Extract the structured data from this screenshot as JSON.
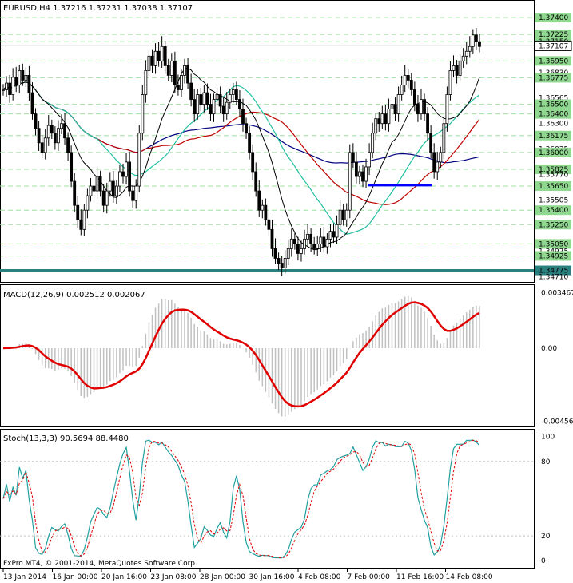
{
  "symbol_header": "EURUSD,H4  1.37216 1.37231 1.37038 1.37107",
  "price_pane": {
    "y_range": [
      1.3468,
      1.3755
    ],
    "labels": [
      {
        "text": "1.37400",
        "v": 1.374,
        "kind": "box"
      },
      {
        "text": "1.37225",
        "v": 1.37225,
        "kind": "box"
      },
      {
        "text": "1.37150",
        "v": 1.3715,
        "kind": "box"
      },
      {
        "text": "1.37107",
        "v": 1.37107,
        "kind": "current"
      },
      {
        "text": "1.36950",
        "v": 1.3695,
        "kind": "box"
      },
      {
        "text": "1.36830",
        "v": 1.3683,
        "kind": "plain"
      },
      {
        "text": "1.36775",
        "v": 1.36775,
        "kind": "box"
      },
      {
        "text": "1.36565",
        "v": 1.36565,
        "kind": "plain"
      },
      {
        "text": "1.36500",
        "v": 1.365,
        "kind": "box"
      },
      {
        "text": "1.36400",
        "v": 1.364,
        "kind": "box"
      },
      {
        "text": "1.36300",
        "v": 1.363,
        "kind": "plain"
      },
      {
        "text": "1.36175",
        "v": 1.36175,
        "kind": "box"
      },
      {
        "text": "1.36035",
        "v": 1.36035,
        "kind": "plain"
      },
      {
        "text": "1.36000",
        "v": 1.36,
        "kind": "box"
      },
      {
        "text": "1.35825",
        "v": 1.35825,
        "kind": "box"
      },
      {
        "text": "1.35770",
        "v": 1.3577,
        "kind": "plain"
      },
      {
        "text": "1.35650",
        "v": 1.3565,
        "kind": "box"
      },
      {
        "text": "1.35505",
        "v": 1.35505,
        "kind": "plain"
      },
      {
        "text": "1.35400",
        "v": 1.354,
        "kind": "box"
      },
      {
        "text": "1.35250",
        "v": 1.3525,
        "kind": "box"
      },
      {
        "text": "1.35050",
        "v": 1.3505,
        "kind": "box"
      },
      {
        "text": "1.34975",
        "v": 1.34975,
        "kind": "plain"
      },
      {
        "text": "1.34925",
        "v": 1.34925,
        "kind": "box"
      },
      {
        "text": "1.34775",
        "v": 1.34775,
        "kind": "teal"
      },
      {
        "text": "1.34710",
        "v": 1.3471,
        "kind": "plain"
      }
    ],
    "support_level": 1.34775,
    "support_color": "#2a7f7f",
    "blue_segment": {
      "from_index": 147,
      "to_index": 175,
      "v": 1.3566
    }
  },
  "macd_pane": {
    "title": "MACD(12,26,9) 0.002512 0.002067",
    "y_range": [
      -0.0048,
      0.0037
    ],
    "labels": [
      {
        "text": "0.003467",
        "v": 0.003467
      },
      {
        "text": "0.00",
        "v": 0
      },
      {
        "text": "-0.004568",
        "v": -0.004568
      }
    ]
  },
  "stoch_pane": {
    "title": "Stoch(13,3,3) 90.5694 88.4480",
    "y_range": [
      -5,
      103
    ],
    "labels": [
      {
        "text": "100",
        "v": 100
      },
      {
        "text": "80",
        "v": 80
      },
      {
        "text": "20",
        "v": 20
      },
      {
        "text": "0",
        "v": 0
      }
    ]
  },
  "copyright": "FxPro MT4, © 2001-2014, MetaQuotes Software Corp.",
  "time_axis": [
    "13 Jan 2014",
    "16 Jan 00:00",
    "20 Jan 16:00",
    "23 Jan 08:00",
    "28 Jan 00:00",
    "30 Jan 16:00",
    "4 Feb 08:00",
    "7 Feb 00:00",
    "11 Feb 16:00",
    "14 Feb 08:00"
  ],
  "colors": {
    "candle": "#000000",
    "ma_fast": "#000000",
    "ma_mid_red": "#c00000",
    "ma_slow_blue": "#000080",
    "ma_teal": "#20c0a0",
    "grid_dash": "#a0e0a0",
    "macd_hist": "#c0c0c0",
    "macd_signal": "#e00000",
    "stoch_main": "#20a0a0",
    "stoch_signal": "#e00000"
  },
  "chart_data": {
    "type": "line",
    "note_series": "EURUSD H4 close path (approximate)",
    "closes": [
      1.3665,
      1.3672,
      1.366,
      1.3678,
      1.367,
      1.3685,
      1.3675,
      1.368,
      1.3662,
      1.364,
      1.3625,
      1.361,
      1.36,
      1.3615,
      1.3628,
      1.362,
      1.361,
      1.3625,
      1.363,
      1.3615,
      1.36,
      1.357,
      1.3545,
      1.353,
      1.352,
      1.354,
      1.3555,
      1.3565,
      1.356,
      1.3575,
      1.356,
      1.3545,
      1.356,
      1.357,
      1.3555,
      1.3565,
      1.358,
      1.3575,
      1.359,
      1.356,
      1.355,
      1.3565,
      1.362,
      1.366,
      1.3685,
      1.37,
      1.369,
      1.3705,
      1.3695,
      1.371,
      1.369,
      1.368,
      1.3695,
      1.367,
      1.3665,
      1.368,
      1.369,
      1.3672,
      1.3655,
      1.364,
      1.366,
      1.365,
      1.3662,
      1.365,
      1.364,
      1.3655,
      1.366,
      1.3648,
      1.364,
      1.3652,
      1.366,
      1.3665,
      1.3655,
      1.3645,
      1.363,
      1.362,
      1.36,
      1.358,
      1.356,
      1.354,
      1.3545,
      1.353,
      1.352,
      1.35,
      1.349,
      1.3485,
      1.348,
      1.349,
      1.35,
      1.351,
      1.3505,
      1.3495,
      1.35,
      1.351,
      1.3515,
      1.3505,
      1.35,
      1.3505,
      1.3512,
      1.3502,
      1.351,
      1.3518,
      1.3512,
      1.3525,
      1.354,
      1.353,
      1.354,
      1.36,
      1.359,
      1.3575,
      1.358,
      1.357,
      1.3585,
      1.36,
      1.362,
      1.3635,
      1.363,
      1.364,
      1.363,
      1.3645,
      1.365,
      1.364,
      1.366,
      1.367,
      1.368,
      1.3675,
      1.3665,
      1.365,
      1.364,
      1.3655,
      1.364,
      1.362,
      1.36,
      1.358,
      1.359,
      1.36,
      1.363,
      1.366,
      1.3685,
      1.369,
      1.368,
      1.3695,
      1.37,
      1.3705,
      1.371,
      1.3722,
      1.3715,
      1.371
    ]
  }
}
